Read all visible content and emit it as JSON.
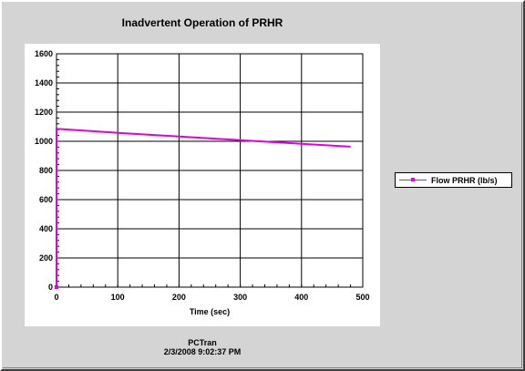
{
  "chart_data": {
    "type": "line",
    "title": "Inadvertent Operation of PRHR",
    "xlabel": "Time (sec)",
    "ylabel": "",
    "xlim": [
      0,
      500
    ],
    "ylim": [
      0,
      1600
    ],
    "x_ticks": [
      0,
      100,
      200,
      300,
      400,
      500
    ],
    "y_ticks": [
      0,
      200,
      400,
      600,
      800,
      1000,
      1200,
      1400,
      1600
    ],
    "x_tick_labels": [
      "0",
      "100",
      "200",
      "300",
      "400",
      "500"
    ],
    "y_tick_labels": [
      "0",
      "200",
      "400",
      "600",
      "800",
      "1000",
      "1200",
      "1400",
      "1600"
    ],
    "grid": true,
    "legend_position": "right",
    "series": [
      {
        "name": "Flow PRHR (lb/s)",
        "color": "#e000e0",
        "x": [
          0,
          0,
          2,
          100,
          200,
          300,
          400,
          480
        ],
        "y": [
          0,
          1085,
          1085,
          1058,
          1033,
          1008,
          983,
          963
        ]
      }
    ]
  },
  "legend": {
    "label": "Flow PRHR (lb/s)"
  },
  "footer": {
    "line1": "PCTran",
    "line2": "2/3/2008 9:02:37 PM"
  }
}
